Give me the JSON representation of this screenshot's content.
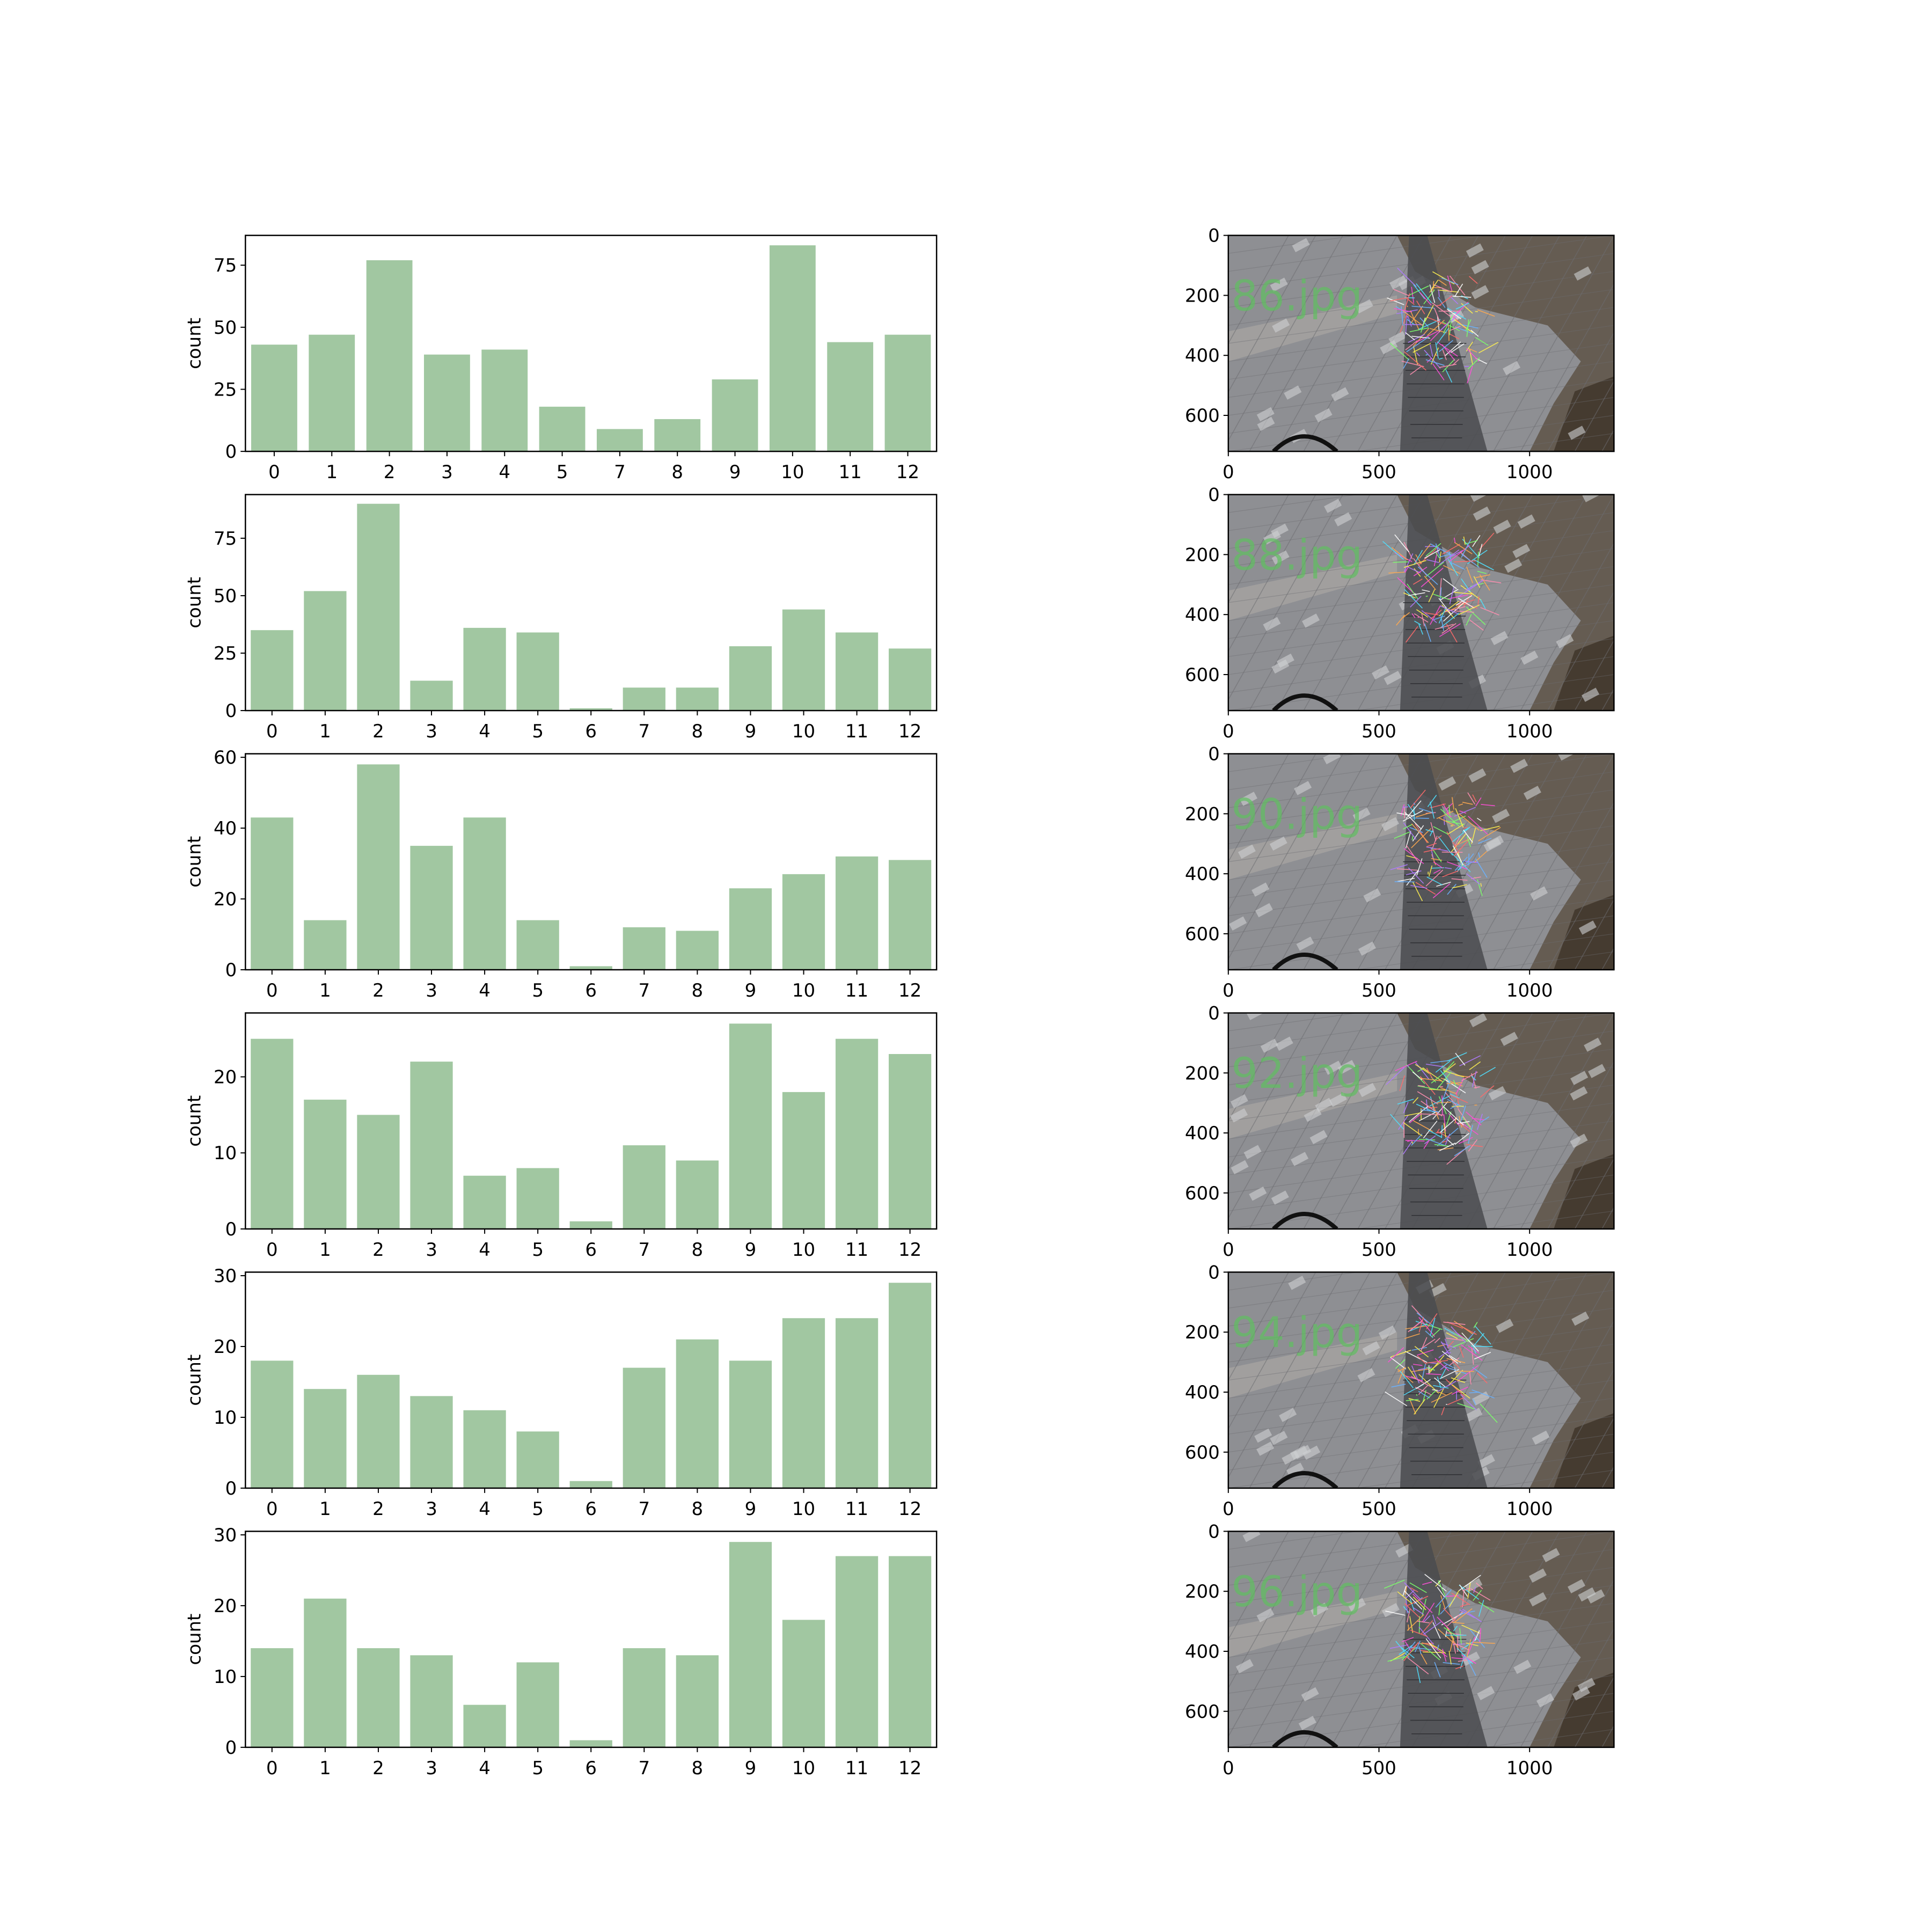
{
  "chart_data": [
    {
      "type": "bar",
      "ylabel": "count",
      "categories": [
        "0",
        "1",
        "2",
        "3",
        "4",
        "5",
        "7",
        "8",
        "9",
        "10",
        "11",
        "12"
      ],
      "values": [
        43,
        47,
        77,
        39,
        41,
        18,
        9,
        13,
        29,
        83,
        44,
        47
      ],
      "ylim": [
        0,
        87
      ],
      "yticks": [
        "0",
        "25",
        "50",
        "75"
      ]
    },
    {
      "type": "bar",
      "ylabel": "count",
      "categories": [
        "0",
        "1",
        "2",
        "3",
        "4",
        "5",
        "6",
        "7",
        "8",
        "9",
        "10",
        "11",
        "12"
      ],
      "values": [
        35,
        52,
        90,
        13,
        36,
        34,
        1,
        10,
        10,
        28,
        44,
        34,
        27
      ],
      "ylim": [
        0,
        94
      ],
      "yticks": [
        "0",
        "25",
        "50",
        "75"
      ]
    },
    {
      "type": "bar",
      "ylabel": "count",
      "categories": [
        "0",
        "1",
        "2",
        "3",
        "4",
        "5",
        "6",
        "7",
        "8",
        "9",
        "10",
        "11",
        "12"
      ],
      "values": [
        43,
        14,
        58,
        35,
        43,
        14,
        1,
        12,
        11,
        23,
        27,
        32,
        31
      ],
      "ylim": [
        0,
        61
      ],
      "yticks": [
        "0",
        "20",
        "40",
        "60"
      ]
    },
    {
      "type": "bar",
      "ylabel": "count",
      "categories": [
        "0",
        "1",
        "2",
        "3",
        "4",
        "5",
        "6",
        "7",
        "8",
        "9",
        "10",
        "11",
        "12"
      ],
      "values": [
        25,
        17,
        15,
        22,
        7,
        8,
        1,
        11,
        9,
        27,
        18,
        25,
        23
      ],
      "ylim": [
        0,
        28.4
      ],
      "yticks": [
        "0",
        "10",
        "20"
      ]
    },
    {
      "type": "bar",
      "ylabel": "count",
      "categories": [
        "0",
        "1",
        "2",
        "3",
        "4",
        "5",
        "6",
        "7",
        "8",
        "9",
        "10",
        "11",
        "12"
      ],
      "values": [
        18,
        14,
        16,
        13,
        11,
        8,
        1,
        17,
        21,
        18,
        24,
        24,
        29
      ],
      "ylim": [
        0,
        30.5
      ],
      "yticks": [
        "0",
        "10",
        "20",
        "30"
      ]
    },
    {
      "type": "bar",
      "ylabel": "count",
      "categories": [
        "0",
        "1",
        "2",
        "3",
        "4",
        "5",
        "6",
        "7",
        "8",
        "9",
        "10",
        "11",
        "12"
      ],
      "values": [
        14,
        21,
        14,
        13,
        6,
        12,
        1,
        14,
        13,
        29,
        18,
        27,
        27
      ],
      "ylim": [
        0,
        30.5
      ],
      "yticks": [
        "0",
        "10",
        "20",
        "30"
      ]
    }
  ],
  "images": [
    {
      "caption": "86.jpg",
      "xticks": [
        "0",
        "500",
        "1000"
      ],
      "yticks": [
        "0",
        "200",
        "400",
        "600"
      ]
    },
    {
      "caption": "88.jpg",
      "xticks": [
        "0",
        "500",
        "1000"
      ],
      "yticks": [
        "0",
        "200",
        "400",
        "600"
      ]
    },
    {
      "caption": "90.jpg",
      "xticks": [
        "0",
        "500",
        "1000"
      ],
      "yticks": [
        "0",
        "200",
        "400",
        "600"
      ]
    },
    {
      "caption": "92.jpg",
      "xticks": [
        "0",
        "500",
        "1000"
      ],
      "yticks": [
        "0",
        "200",
        "400",
        "600"
      ]
    },
    {
      "caption": "94.jpg",
      "xticks": [
        "0",
        "500",
        "1000"
      ],
      "yticks": [
        "0",
        "200",
        "400",
        "600"
      ]
    },
    {
      "caption": "96.jpg",
      "xticks": [
        "0",
        "500",
        "1000"
      ],
      "yticks": [
        "0",
        "200",
        "400",
        "600"
      ]
    }
  ],
  "colors": {
    "bar": "#a1c7a1",
    "axis": "#000000",
    "caption": "#5fbf5f"
  },
  "icons": [
    "tiled-pavement-photo",
    "feature-match-lines"
  ]
}
